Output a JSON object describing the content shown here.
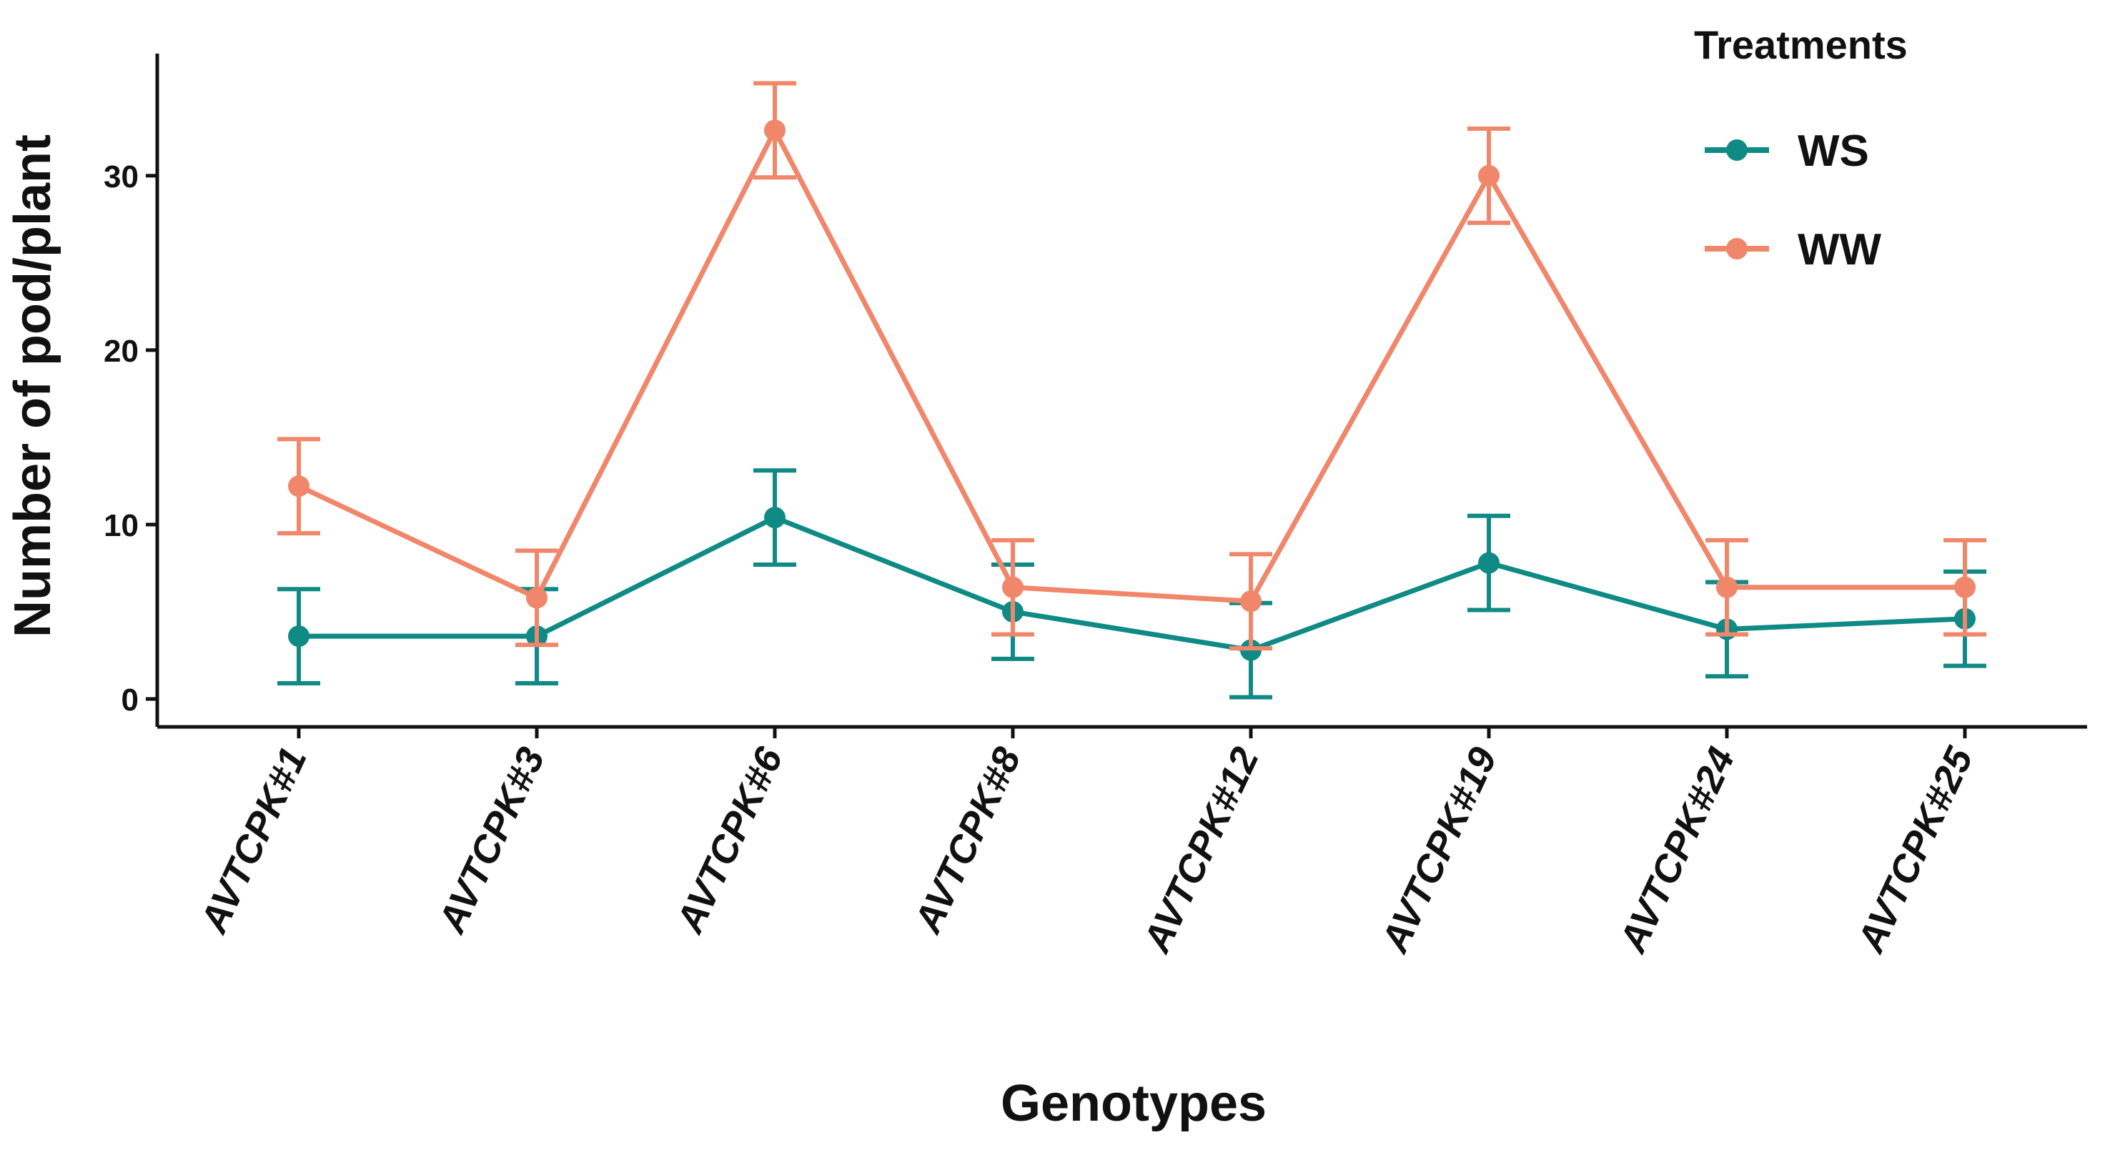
{
  "chart_data": {
    "type": "line",
    "categories": [
      "AVTCPK#1",
      "AVTCPK#3",
      "AVTCPK#6",
      "AVTCPK#8",
      "AVTCPK#12",
      "AVTCPK#19",
      "AVTCPK#24",
      "AVTCPK#25"
    ],
    "series": [
      {
        "name": "WS",
        "color": "#0f8a85",
        "values": [
          3.6,
          3.6,
          10.4,
          5.0,
          2.8,
          7.8,
          4.0,
          4.6
        ],
        "error": [
          2.7,
          2.7,
          2.7,
          2.7,
          2.7,
          2.7,
          2.7,
          2.7
        ]
      },
      {
        "name": "WW",
        "color": "#f0866a",
        "values": [
          12.2,
          5.8,
          32.6,
          6.4,
          5.6,
          30.0,
          6.4,
          6.4
        ],
        "error": [
          2.7,
          2.7,
          2.7,
          2.7,
          2.7,
          2.7,
          2.7,
          2.7
        ]
      }
    ],
    "xlabel": "Genotypes",
    "ylabel": "Number of pod/plant",
    "ylim": [
      -1.6,
      37
    ],
    "yticks": [
      0,
      10,
      20,
      30
    ],
    "legend": {
      "title": "Treatments",
      "position": "top-right"
    },
    "grid": false
  }
}
